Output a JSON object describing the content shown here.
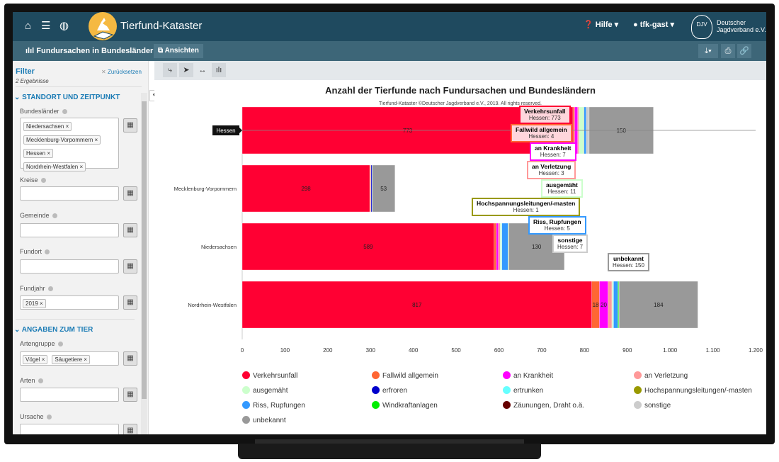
{
  "header": {
    "app_title": "Tierfund-Kataster",
    "help_label": "Hilfe",
    "user_label": "tfk-gast",
    "org_logo_text": "DJV",
    "org_name_line1": "Deutscher",
    "org_name_line2": "Jagdverband e.V."
  },
  "subheader": {
    "page_title": "Fundursachen in Bundesländern",
    "views_label": "Ansichten"
  },
  "sidebar": {
    "title": "Filter",
    "reset_label": "Zurücksetzen",
    "results": "2 Ergebnisse",
    "section1": "STANDORT UND ZEITPUNKT",
    "bundeslaender_label": "Bundesländer",
    "bundeslaender": [
      "Niedersachsen",
      "Mecklenburg-Vorpommern",
      "Hessen",
      "Nordrhein-Westfalen"
    ],
    "kreise_label": "Kreise",
    "gemeinde_label": "Gemeinde",
    "fundort_label": "Fundort",
    "fundjahr_label": "Fundjahr",
    "fundjahr": [
      "2019"
    ],
    "section2": "ANGABEN ZUM TIER",
    "artengruppe_label": "Artengruppe",
    "artengruppe": [
      "Vögel",
      "Säugetiere"
    ],
    "arten_label": "Arten",
    "ursache_label": "Ursache"
  },
  "chart_data": {
    "type": "bar",
    "orientation": "horizontal",
    "stacked": true,
    "title": "Anzahl der Tierfunde nach Fundursachen und Bundesländern",
    "subtitle": "Tierfund-Kataster ©Deutscher Jagdverband e.V., 2019. All rights reserved.",
    "categories": [
      "Hessen",
      "Mecklenburg-Vorpommern",
      "Niedersachsen",
      "Nordrhein-Westfalen"
    ],
    "xlim": [
      0,
      1200
    ],
    "xticks": [
      "0",
      "100",
      "200",
      "300",
      "400",
      "500",
      "600",
      "700",
      "800",
      "900",
      "1.000",
      "1.100",
      "1.200"
    ],
    "highlighted_category": "Hessen",
    "series": [
      {
        "name": "Verkehrsunfall",
        "color": "#ff0033",
        "values": [
          773,
          298,
          589,
          817
        ]
      },
      {
        "name": "Fallwild allgemein",
        "color": "#ff6633",
        "values": [
          4,
          2,
          5,
          18
        ]
      },
      {
        "name": "an Krankheit",
        "color": "#ff00ff",
        "values": [
          7,
          0,
          5,
          20
        ]
      },
      {
        "name": "an Verletzung",
        "color": "#ff9999",
        "values": [
          3,
          1,
          4,
          9
        ]
      },
      {
        "name": "ausgemäht",
        "color": "#ccffcc",
        "values": [
          11,
          0,
          3,
          3
        ]
      },
      {
        "name": "erfroren",
        "color": "#0000cc",
        "values": [
          0,
          2,
          0,
          0
        ]
      },
      {
        "name": "ertrunken",
        "color": "#66ffff",
        "values": [
          0,
          0,
          1,
          1
        ]
      },
      {
        "name": "Hochspannungsleitungen/-masten",
        "color": "#999900",
        "values": [
          1,
          0,
          0,
          0
        ]
      },
      {
        "name": "Riss, Rupfungen",
        "color": "#3399ff",
        "values": [
          5,
          1,
          14,
          10
        ]
      },
      {
        "name": "Windkraftanlagen",
        "color": "#00ee00",
        "values": [
          0,
          0,
          1,
          2
        ]
      },
      {
        "name": "Zäunungen, Draht o.ä.",
        "color": "#660000",
        "values": [
          0,
          0,
          0,
          0
        ]
      },
      {
        "name": "sonstige",
        "color": "#cccccc",
        "values": [
          7,
          0,
          1,
          1
        ]
      },
      {
        "name": "unbekannt",
        "color": "#999999",
        "values": [
          150,
          53,
          130,
          184
        ]
      }
    ],
    "tooltips": [
      {
        "title": "Verkehrsunfall",
        "text": "Hessen: 773"
      },
      {
        "title": "Fallwild allgemein",
        "text": "Hessen: 4"
      },
      {
        "title": "an Krankheit",
        "text": "Hessen: 7"
      },
      {
        "title": "an Verletzung",
        "text": "Hessen: 3"
      },
      {
        "title": "ausgemäht",
        "text": "Hessen: 11"
      },
      {
        "title": "Hochspannungsleitungen/-masten",
        "text": "Hessen: 1"
      },
      {
        "title": "Riss, Rupfungen",
        "text": "Hessen: 5"
      },
      {
        "title": "sonstige",
        "text": "Hessen: 7"
      },
      {
        "title": "unbekannt",
        "text": "Hessen: 150"
      }
    ]
  }
}
